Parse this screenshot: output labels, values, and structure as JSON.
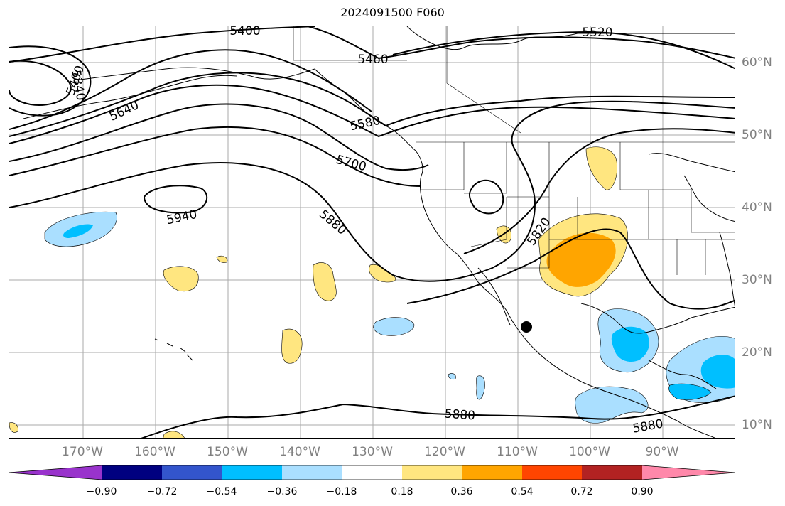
{
  "title": "2024091500 F060",
  "lon_labels": [
    "170°W",
    "160°W",
    "150°W",
    "140°W",
    "130°W",
    "120°W",
    "110°W",
    "100°W",
    "90°W"
  ],
  "lat_labels": [
    "60°N",
    "50°N",
    "40°N",
    "30°N",
    "20°N",
    "10°N"
  ],
  "contour_labels": [
    "5400",
    "5520",
    "5460",
    "5340",
    "5400",
    "5640",
    "5580",
    "5700",
    "5940",
    "5880",
    "5820",
    "5880",
    "5880"
  ],
  "colorbar": {
    "tick_labels": [
      "−0.90",
      "−0.72",
      "−0.54",
      "−0.36",
      "−0.18",
      "0.18",
      "0.36",
      "0.54",
      "0.72",
      "0.90"
    ],
    "colors": [
      "#9933cc",
      "#000080",
      "#3355cc",
      "#00bfff",
      "#aadfff",
      "#ffffff",
      "#ffe680",
      "#ffa500",
      "#ff4500",
      "#b22222",
      "#ff88aa"
    ]
  },
  "marker": {
    "lon": -109,
    "lat": 23.5
  }
}
